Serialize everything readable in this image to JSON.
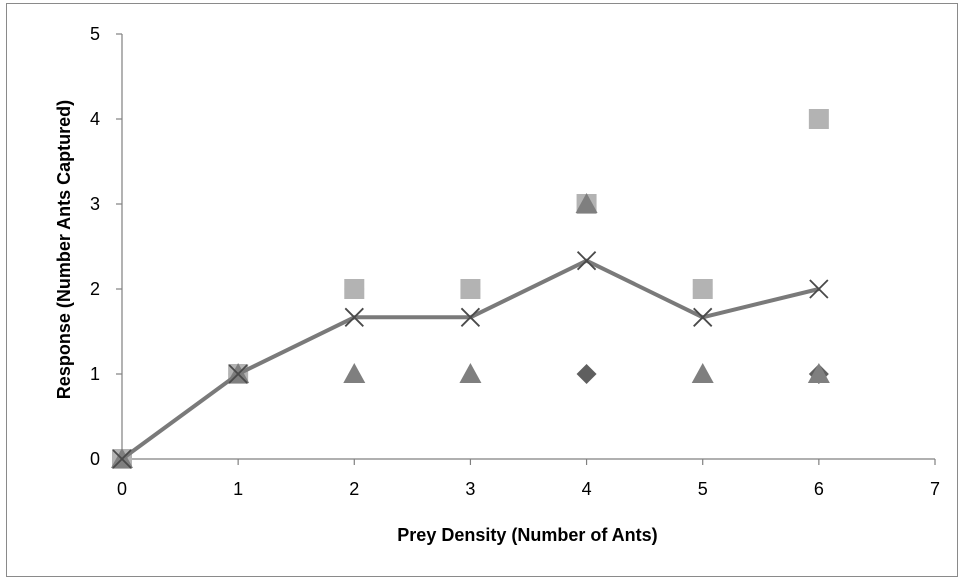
{
  "chart_data": {
    "type": "scatter",
    "title": "",
    "xlabel": "Prey Density (Number of Ants)",
    "ylabel": "Response (Number Ants Captured)",
    "xlim": [
      0,
      7
    ],
    "ylim": [
      0,
      5
    ],
    "x_ticks": [
      "0",
      "1",
      "2",
      "3",
      "4",
      "5",
      "6",
      "7"
    ],
    "y_ticks": [
      "0",
      "1",
      "2",
      "3",
      "4",
      "5"
    ],
    "grid": false,
    "legend": "none",
    "series": [
      {
        "marker": "diamond",
        "color": "#5f5f5f",
        "points": [
          [
            0,
            0
          ],
          [
            1,
            1
          ],
          [
            2,
            2
          ],
          [
            3,
            2
          ],
          [
            4,
            1
          ],
          [
            5,
            2
          ],
          [
            6,
            1
          ]
        ]
      },
      {
        "marker": "square",
        "color": "#b3b3b3",
        "points": [
          [
            0,
            0
          ],
          [
            1,
            1
          ],
          [
            2,
            2
          ],
          [
            3,
            2
          ],
          [
            4,
            3
          ],
          [
            5,
            2
          ],
          [
            6,
            4
          ]
        ]
      },
      {
        "marker": "triangle",
        "color": "#7f7f7f",
        "points": [
          [
            0,
            0
          ],
          [
            1,
            1
          ],
          [
            2,
            1
          ],
          [
            3,
            1
          ],
          [
            4,
            3
          ],
          [
            5,
            1
          ],
          [
            6,
            1
          ]
        ]
      },
      {
        "marker": "x",
        "line": true,
        "color": "#7a7a7a",
        "points": [
          [
            0,
            0
          ],
          [
            1,
            1
          ],
          [
            2,
            1.667
          ],
          [
            3,
            1.667
          ],
          [
            4,
            2.333
          ],
          [
            5,
            1.667
          ],
          [
            6,
            2
          ]
        ]
      }
    ]
  }
}
